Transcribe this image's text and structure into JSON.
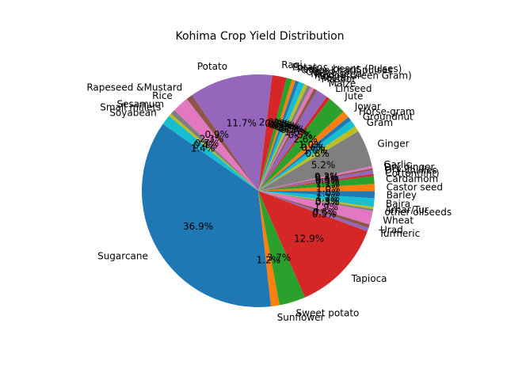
{
  "chart_data": {
    "type": "pie",
    "title": "Kohima Crop Yield Distribution",
    "start_angle_deg": 145,
    "direction": "counterclockwise",
    "pct_format": "%1.1f%%",
    "slices": [
      {
        "label": "Sugarcane",
        "value": 36.9,
        "color": "#1f77b4"
      },
      {
        "label": "Sunflower",
        "value": 1.2,
        "color": "#ff7f0e"
      },
      {
        "label": "Sweet potato",
        "value": 3.7,
        "color": "#2ca02c"
      },
      {
        "label": "Tapioca",
        "value": 12.9,
        "color": "#d62728"
      },
      {
        "label": "Turmeric",
        "value": 0.5,
        "color": "#9467bd"
      },
      {
        "label": "Urad",
        "value": 0.5,
        "color": "#8c564b"
      },
      {
        "label": "Wheat",
        "value": 1.9,
        "color": "#e377c2"
      },
      {
        "label": "other oilseeds",
        "value": 0.3,
        "color": "#7f7f7f"
      },
      {
        "label": "Arhar/Tur",
        "value": 0.3,
        "color": "#bcbd22"
      },
      {
        "label": "Bajra",
        "value": 1.2,
        "color": "#17becf"
      },
      {
        "label": "Barley",
        "value": 1.0,
        "color": "#1f77b4"
      },
      {
        "label": "Castor seed",
        "value": 1.0,
        "color": "#ff7f0e"
      },
      {
        "label": "Cardamom",
        "value": 1.1,
        "color": "#2ca02c"
      },
      {
        "label": "Cotton(lint)",
        "value": 0.3,
        "color": "#d62728"
      },
      {
        "label": "Dry chillies",
        "value": 0.5,
        "color": "#9467bd"
      },
      {
        "label": "Dry ginger",
        "value": 0.3,
        "color": "#8c564b"
      },
      {
        "label": "Garlic",
        "value": 0.3,
        "color": "#e377c2"
      },
      {
        "label": "Ginger",
        "value": 5.2,
        "color": "#7f7f7f"
      },
      {
        "label": "Gram",
        "value": 0.8,
        "color": "#bcbd22"
      },
      {
        "label": "Groundnut",
        "value": 1.0,
        "color": "#17becf"
      },
      {
        "label": "Horse-gram",
        "value": 0.6,
        "color": "#1f77b4"
      },
      {
        "label": "Jowar",
        "value": 1.0,
        "color": "#ff7f0e"
      },
      {
        "label": "Jute",
        "value": 2.6,
        "color": "#2ca02c"
      },
      {
        "label": "Linseed",
        "value": 0.5,
        "color": "#d62728"
      },
      {
        "label": "Maize",
        "value": 1.6,
        "color": "#9467bd"
      },
      {
        "label": "Masoor",
        "value": 0.5,
        "color": "#8c564b"
      },
      {
        "label": "Mesta",
        "value": 0.5,
        "color": "#e377c2"
      },
      {
        "label": "Moong(Green Gram)",
        "value": 0.5,
        "color": "#7f7f7f"
      },
      {
        "label": "Niger seed",
        "value": 0.5,
        "color": "#bcbd22"
      },
      {
        "label": "Onion",
        "value": 0.8,
        "color": "#17becf"
      },
      {
        "label": "Other Kharif pulses",
        "value": 0.5,
        "color": "#1f77b4"
      },
      {
        "label": "Peas & beans (Pulses)",
        "value": 0.5,
        "color": "#ff7f0e"
      },
      {
        "label": "Potato",
        "value": 0.8,
        "color": "#2ca02c"
      },
      {
        "label": "Ragi",
        "value": 2.0,
        "color": "#d62728"
      },
      {
        "label": "Potato",
        "value": 11.7,
        "color": "#9467bd"
      },
      {
        "label": "Rapeseed &Mustard",
        "value": 0.9,
        "color": "#8c564b"
      },
      {
        "label": "Rice",
        "value": 2.3,
        "color": "#e377c2"
      },
      {
        "label": "Sesamum",
        "value": 0.7,
        "color": "#7f7f7f"
      },
      {
        "label": "Small millets",
        "value": 0.4,
        "color": "#bcbd22"
      },
      {
        "label": "Soyabean",
        "value": 1.4,
        "color": "#17becf"
      }
    ]
  }
}
